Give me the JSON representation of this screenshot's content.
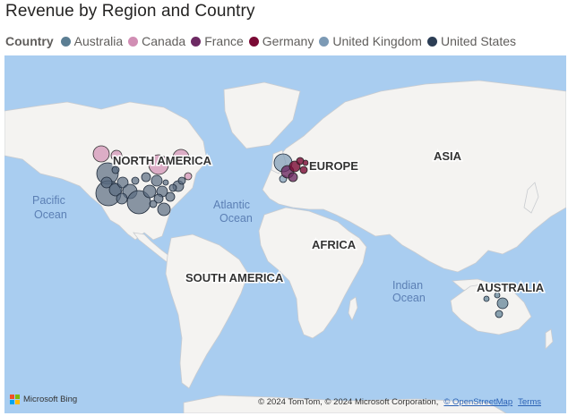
{
  "title": "Revenue by Region and Country",
  "legend": {
    "title": "Country",
    "items": [
      {
        "label": "Australia",
        "color": "#5b7e93"
      },
      {
        "label": "Canada",
        "color": "#d18eb4"
      },
      {
        "label": "France",
        "color": "#6d2a63"
      },
      {
        "label": "Germany",
        "color": "#7a0a35"
      },
      {
        "label": "United Kingdom",
        "color": "#7c9ab5"
      },
      {
        "label": "United States",
        "color": "#2c3e55"
      }
    ]
  },
  "map": {
    "continents": [
      "NORTH AMERICA",
      "SOUTH AMERICA",
      "EUROPE",
      "AFRICA",
      "ASIA",
      "AUSTRALIA"
    ],
    "oceans": {
      "pacific": [
        "Pacific",
        "Ocean"
      ],
      "atlantic": [
        "Atlantic",
        "Ocean"
      ],
      "indian": [
        "Indian",
        "Ocean"
      ]
    },
    "colors": {
      "water": "#a9cdf0",
      "land": "#f4f3f1"
    }
  },
  "footer": {
    "brand": "Microsoft Bing",
    "copyright": "© 2024 TomTom, © 2024 Microsoft Corporation,",
    "osm_link": "© OpenStreetMap",
    "terms_link": "Terms"
  }
}
